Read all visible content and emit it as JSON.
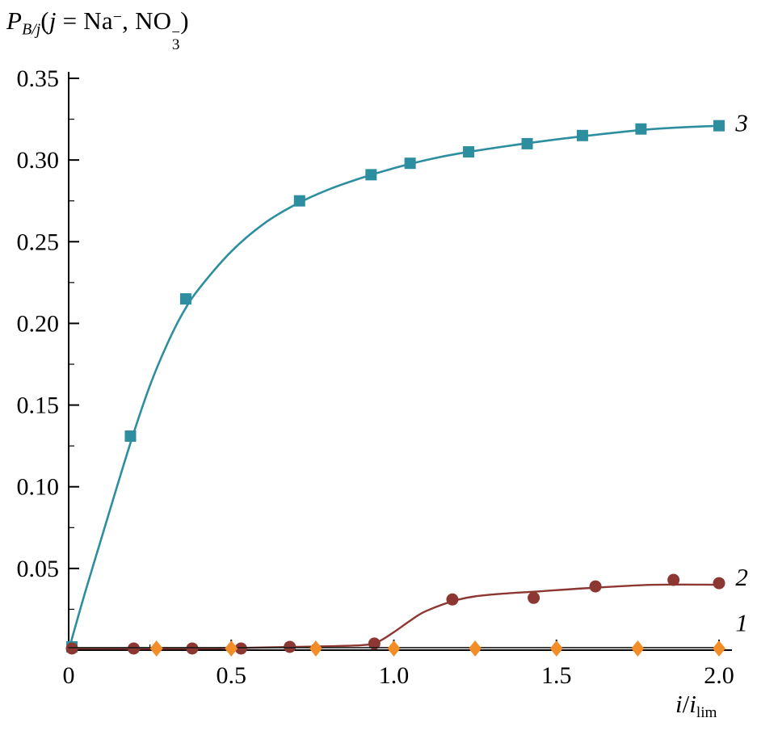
{
  "title": {
    "symbol": "P",
    "subscript": "B/j",
    "open": "(",
    "var": "j",
    "equals": " = ",
    "ion1": "Na",
    "ion1_charge": "−",
    "separator": ", ",
    "ion2": "NO",
    "ion2_sub": "3",
    "ion2_charge": "−",
    "close": ")"
  },
  "x_axis_label": {
    "numerator": "i",
    "slash": "/",
    "denominator": "i",
    "denominator_sub": "lim"
  },
  "chart_data": {
    "type": "line",
    "title": "P_B/j (j = Na−, NO3−)",
    "xlabel": "i/i_lim",
    "ylabel": "P_B/j",
    "xlim": [
      0,
      2.0
    ],
    "ylim": [
      0,
      0.35
    ],
    "grid": false,
    "legend_position": "right-inline-curve-labels",
    "axis_color": "#000000",
    "x_major_ticks": [
      0,
      0.5,
      1.0,
      1.5,
      2.0
    ],
    "x_tick_labels": [
      "0",
      "0.5",
      "1.0",
      "1.5",
      "2.0"
    ],
    "x_minor_tick_step": 0.25,
    "y_major_ticks": [
      0.05,
      0.1,
      0.15,
      0.2,
      0.25,
      0.3,
      0.35
    ],
    "y_tick_labels": [
      "0.05",
      "0.10",
      "0.15",
      "0.20",
      "0.25",
      "0.30",
      "0.35"
    ],
    "y_minor_tick_step": 0.025,
    "series": [
      {
        "name": "curve-3",
        "label": "3",
        "marker": "square",
        "marker_color": "#2d8e9f",
        "line_color": "#2d8e9f",
        "line_width": 2.6,
        "points": [
          [
            0.01,
            0.002
          ],
          [
            0.19,
            0.131
          ],
          [
            0.36,
            0.215
          ],
          [
            0.71,
            0.275
          ],
          [
            0.93,
            0.291
          ],
          [
            1.05,
            0.298
          ],
          [
            1.23,
            0.305
          ],
          [
            1.41,
            0.31
          ],
          [
            1.58,
            0.315
          ],
          [
            1.76,
            0.319
          ],
          [
            2.0,
            0.321
          ]
        ],
        "curve": [
          [
            0,
            0.0
          ],
          [
            0.05,
            0.035
          ],
          [
            0.1,
            0.068
          ],
          [
            0.15,
            0.101
          ],
          [
            0.2,
            0.133
          ],
          [
            0.25,
            0.162
          ],
          [
            0.3,
            0.186
          ],
          [
            0.35,
            0.206
          ],
          [
            0.4,
            0.221
          ],
          [
            0.5,
            0.244
          ],
          [
            0.6,
            0.261
          ],
          [
            0.7,
            0.273
          ],
          [
            0.8,
            0.282
          ],
          [
            0.9,
            0.289
          ],
          [
            1.0,
            0.295
          ],
          [
            1.1,
            0.3
          ],
          [
            1.2,
            0.304
          ],
          [
            1.4,
            0.31
          ],
          [
            1.6,
            0.315
          ],
          [
            1.8,
            0.319
          ],
          [
            2.0,
            0.321
          ]
        ]
      },
      {
        "name": "curve-2",
        "label": "2",
        "marker": "circle",
        "marker_color": "#8c3732",
        "line_color": "#8c3732",
        "line_width": 2.4,
        "points": [
          [
            0.01,
            0.001
          ],
          [
            0.2,
            0.001
          ],
          [
            0.38,
            0.001
          ],
          [
            0.53,
            0.001
          ],
          [
            0.68,
            0.002
          ],
          [
            0.94,
            0.004
          ],
          [
            1.18,
            0.031
          ],
          [
            1.43,
            0.032
          ],
          [
            1.62,
            0.039
          ],
          [
            1.86,
            0.043
          ],
          [
            2.0,
            0.041
          ]
        ],
        "curve": [
          [
            0,
            0.001
          ],
          [
            0.4,
            0.001
          ],
          [
            0.7,
            0.002
          ],
          [
            0.9,
            0.003
          ],
          [
            0.95,
            0.005
          ],
          [
            1.0,
            0.011
          ],
          [
            1.05,
            0.018
          ],
          [
            1.1,
            0.024
          ],
          [
            1.2,
            0.031
          ],
          [
            1.3,
            0.034
          ],
          [
            1.45,
            0.036
          ],
          [
            1.6,
            0.038
          ],
          [
            1.8,
            0.04
          ],
          [
            2.0,
            0.04
          ]
        ]
      },
      {
        "name": "curve-1",
        "label": "1",
        "marker": "diamond",
        "marker_color": "#f28d27",
        "line_color": "#1c1c1c",
        "line_width": 1.6,
        "points": [
          [
            0.27,
            0.001
          ],
          [
            0.5,
            0.001
          ],
          [
            0.76,
            0.001
          ],
          [
            1.0,
            0.001
          ],
          [
            1.25,
            0.001
          ],
          [
            1.5,
            0.001
          ],
          [
            1.75,
            0.001
          ],
          [
            2.0,
            0.001
          ]
        ],
        "curve": [
          [
            0,
            0.0015
          ],
          [
            0.5,
            0.0015
          ],
          [
            1.0,
            0.0015
          ],
          [
            1.5,
            0.0015
          ],
          [
            2.0,
            0.0015
          ]
        ]
      }
    ],
    "annotations": [
      {
        "text": "3",
        "x": 2.07,
        "y": 0.323
      },
      {
        "text": "2",
        "x": 2.07,
        "y": 0.045
      },
      {
        "text": "1",
        "x": 2.07,
        "y": 0.017
      }
    ]
  }
}
